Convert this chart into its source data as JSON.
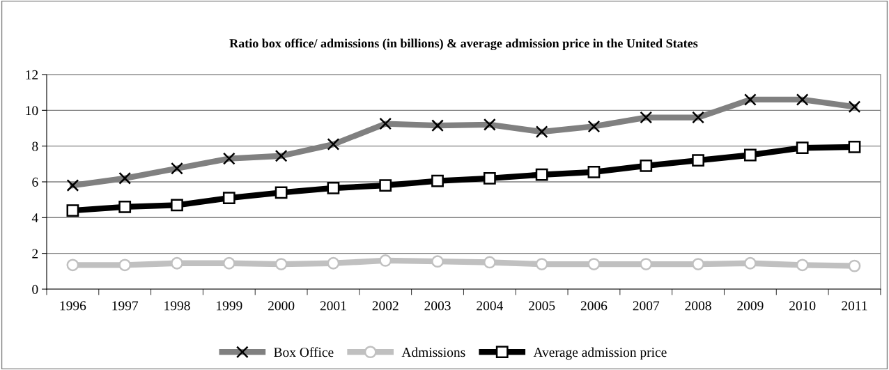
{
  "chart_data": {
    "type": "line",
    "title": "Ratio box office/ admissions (in billions) & average admission price in the United States",
    "categories": [
      "1996",
      "1997",
      "1998",
      "1999",
      "2000",
      "2001",
      "2002",
      "2003",
      "2004",
      "2005",
      "2006",
      "2007",
      "2008",
      "2009",
      "2010",
      "2011"
    ],
    "series": [
      {
        "name": "Box Office",
        "color": "#808080",
        "marker": "cross",
        "values": [
          5.8,
          6.2,
          6.75,
          7.3,
          7.45,
          8.1,
          9.25,
          9.15,
          9.2,
          8.8,
          9.1,
          9.6,
          9.6,
          10.6,
          10.6,
          10.2
        ]
      },
      {
        "name": "Admissions",
        "color": "#c0c0c0",
        "marker": "circle",
        "values": [
          1.35,
          1.35,
          1.45,
          1.45,
          1.4,
          1.45,
          1.6,
          1.55,
          1.5,
          1.4,
          1.4,
          1.4,
          1.4,
          1.45,
          1.35,
          1.3
        ]
      },
      {
        "name": "Average admission price",
        "color": "#000000",
        "marker": "square",
        "values": [
          4.4,
          4.6,
          4.7,
          5.1,
          5.4,
          5.65,
          5.8,
          6.05,
          6.2,
          6.4,
          6.55,
          6.9,
          7.2,
          7.5,
          7.9,
          7.95
        ]
      }
    ],
    "ylim": [
      0,
      12
    ],
    "yticks": [
      0,
      2,
      4,
      6,
      8,
      10,
      12
    ],
    "grid": "y",
    "legend": "bottom",
    "line_style": "solid"
  }
}
